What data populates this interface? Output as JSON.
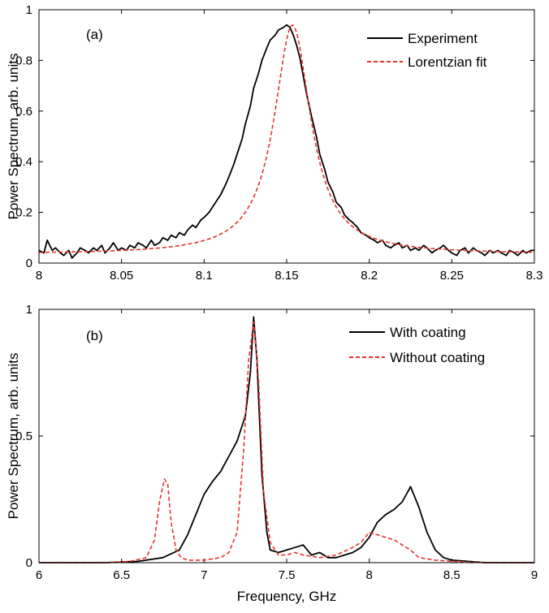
{
  "xlabel_shared": "Frequency, GHz",
  "chart_data": [
    {
      "type": "line",
      "panel_label": "(a)",
      "xlabel": "",
      "ylabel": "Power Spectrum, arb. units",
      "xlim": [
        8.0,
        8.3
      ],
      "ylim": [
        0,
        1
      ],
      "xticks": [
        8,
        8.05,
        8.1,
        8.15,
        8.2,
        8.25,
        8.3
      ],
      "xtick_labels": [
        "8",
        "8.05",
        "8.1",
        "8.15",
        "8.2",
        "8.25",
        "8.3"
      ],
      "yticks": [
        0,
        0.2,
        0.4,
        0.6,
        0.8,
        1
      ],
      "ytick_labels": [
        "0",
        "0.2",
        "0.4",
        "0.6",
        "0.8",
        "1"
      ],
      "legend_position": "top-right",
      "series": [
        {
          "name": "Experiment",
          "color": "#000000",
          "style": "solid",
          "x": [
            8.0,
            8.003,
            8.005,
            8.008,
            8.01,
            8.013,
            8.015,
            8.018,
            8.02,
            8.023,
            8.025,
            8.028,
            8.03,
            8.033,
            8.035,
            8.038,
            8.04,
            8.043,
            8.045,
            8.048,
            8.05,
            8.053,
            8.055,
            8.058,
            8.06,
            8.063,
            8.065,
            8.068,
            8.07,
            8.073,
            8.075,
            8.078,
            8.08,
            8.083,
            8.085,
            8.088,
            8.09,
            8.093,
            8.095,
            8.098,
            8.1,
            8.103,
            8.105,
            8.108,
            8.11,
            8.113,
            8.115,
            8.118,
            8.12,
            8.123,
            8.125,
            8.128,
            8.13,
            8.133,
            8.135,
            8.138,
            8.14,
            8.143,
            8.145,
            8.148,
            8.15,
            8.152,
            8.154,
            8.156,
            8.158,
            8.16,
            8.162,
            8.165,
            8.168,
            8.17,
            8.173,
            8.175,
            8.178,
            8.18,
            8.183,
            8.185,
            8.188,
            8.19,
            8.193,
            8.195,
            8.198,
            8.2,
            8.203,
            8.205,
            8.208,
            8.21,
            8.213,
            8.215,
            8.218,
            8.22,
            8.223,
            8.225,
            8.228,
            8.23,
            8.233,
            8.235,
            8.238,
            8.24,
            8.243,
            8.245,
            8.248,
            8.25,
            8.253,
            8.255,
            8.258,
            8.26,
            8.263,
            8.265,
            8.268,
            8.27,
            8.273,
            8.275,
            8.278,
            8.28,
            8.283,
            8.285,
            8.288,
            8.29,
            8.293,
            8.295,
            8.298,
            8.3
          ],
          "y": [
            0.05,
            0.04,
            0.09,
            0.05,
            0.06,
            0.04,
            0.03,
            0.05,
            0.02,
            0.04,
            0.06,
            0.05,
            0.04,
            0.06,
            0.05,
            0.07,
            0.04,
            0.06,
            0.08,
            0.05,
            0.06,
            0.05,
            0.07,
            0.06,
            0.08,
            0.07,
            0.06,
            0.09,
            0.07,
            0.08,
            0.1,
            0.09,
            0.11,
            0.1,
            0.12,
            0.11,
            0.13,
            0.15,
            0.14,
            0.17,
            0.18,
            0.2,
            0.22,
            0.25,
            0.27,
            0.31,
            0.34,
            0.39,
            0.43,
            0.49,
            0.55,
            0.62,
            0.69,
            0.75,
            0.8,
            0.85,
            0.88,
            0.9,
            0.92,
            0.93,
            0.94,
            0.93,
            0.9,
            0.86,
            0.81,
            0.74,
            0.67,
            0.58,
            0.5,
            0.43,
            0.37,
            0.32,
            0.28,
            0.24,
            0.22,
            0.19,
            0.17,
            0.16,
            0.14,
            0.12,
            0.11,
            0.1,
            0.09,
            0.08,
            0.09,
            0.07,
            0.06,
            0.07,
            0.08,
            0.06,
            0.07,
            0.05,
            0.06,
            0.05,
            0.07,
            0.06,
            0.04,
            0.05,
            0.06,
            0.07,
            0.05,
            0.04,
            0.03,
            0.05,
            0.06,
            0.04,
            0.06,
            0.05,
            0.04,
            0.03,
            0.05,
            0.04,
            0.05,
            0.04,
            0.03,
            0.05,
            0.04,
            0.03,
            0.05,
            0.04,
            0.05,
            0.05
          ]
        },
        {
          "name": "Lorentzian fit",
          "color": "#e8312a",
          "style": "dashed",
          "lorentz": {
            "x0": 8.1535,
            "gamma": 0.0135,
            "amp": 0.905,
            "baseline": 0.035
          }
        }
      ]
    },
    {
      "type": "line",
      "panel_label": "(b)",
      "xlabel": "Frequency, GHz",
      "ylabel": "Power Spectrum, arb. units",
      "xlim": [
        6,
        9
      ],
      "ylim": [
        0,
        1
      ],
      "xticks": [
        6,
        6.5,
        7,
        7.5,
        8,
        8.5,
        9
      ],
      "xtick_labels": [
        "6",
        "6.5",
        "7",
        "7.5",
        "8",
        "8.5",
        "9"
      ],
      "yticks": [
        0,
        0.5,
        1
      ],
      "ytick_labels": [
        "0",
        "0.5",
        "1"
      ],
      "legend_position": "top-right",
      "series": [
        {
          "name": "With coating",
          "color": "#000000",
          "style": "solid",
          "x": [
            6.0,
            6.2,
            6.4,
            6.6,
            6.75,
            6.85,
            6.9,
            6.95,
            7.0,
            7.05,
            7.1,
            7.15,
            7.2,
            7.25,
            7.28,
            7.3,
            7.32,
            7.35,
            7.38,
            7.4,
            7.45,
            7.5,
            7.55,
            7.6,
            7.65,
            7.7,
            7.75,
            7.8,
            7.85,
            7.9,
            7.95,
            8.0,
            8.05,
            8.1,
            8.15,
            8.2,
            8.25,
            8.3,
            8.35,
            8.4,
            8.45,
            8.5,
            8.6,
            8.7,
            8.8,
            8.9,
            9.0
          ],
          "y": [
            0.0,
            0.0,
            0.0,
            0.005,
            0.02,
            0.05,
            0.11,
            0.19,
            0.27,
            0.32,
            0.36,
            0.42,
            0.48,
            0.58,
            0.75,
            0.97,
            0.8,
            0.35,
            0.12,
            0.05,
            0.04,
            0.05,
            0.06,
            0.07,
            0.03,
            0.04,
            0.02,
            0.02,
            0.03,
            0.04,
            0.06,
            0.1,
            0.16,
            0.19,
            0.21,
            0.24,
            0.3,
            0.22,
            0.12,
            0.05,
            0.02,
            0.01,
            0.005,
            0.0,
            0.0,
            0.0,
            0.0
          ]
        },
        {
          "name": "Without coating",
          "color": "#e8312a",
          "style": "dashed",
          "x": [
            6.0,
            6.2,
            6.4,
            6.55,
            6.65,
            6.7,
            6.73,
            6.76,
            6.78,
            6.8,
            6.83,
            6.86,
            6.9,
            7.0,
            7.1,
            7.15,
            7.2,
            7.24,
            7.27,
            7.3,
            7.33,
            7.36,
            7.4,
            7.45,
            7.5,
            7.55,
            7.6,
            7.7,
            7.8,
            7.9,
            7.95,
            8.0,
            8.05,
            8.1,
            8.15,
            8.2,
            8.25,
            8.3,
            8.4,
            8.5,
            8.7,
            9.0
          ],
          "y": [
            0.0,
            0.0,
            0.0,
            0.005,
            0.02,
            0.09,
            0.24,
            0.33,
            0.31,
            0.16,
            0.05,
            0.02,
            0.01,
            0.01,
            0.02,
            0.04,
            0.12,
            0.45,
            0.8,
            0.95,
            0.72,
            0.28,
            0.08,
            0.03,
            0.03,
            0.04,
            0.03,
            0.02,
            0.03,
            0.06,
            0.08,
            0.12,
            0.11,
            0.1,
            0.09,
            0.07,
            0.05,
            0.02,
            0.01,
            0.005,
            0.0,
            0.0
          ]
        }
      ]
    }
  ]
}
